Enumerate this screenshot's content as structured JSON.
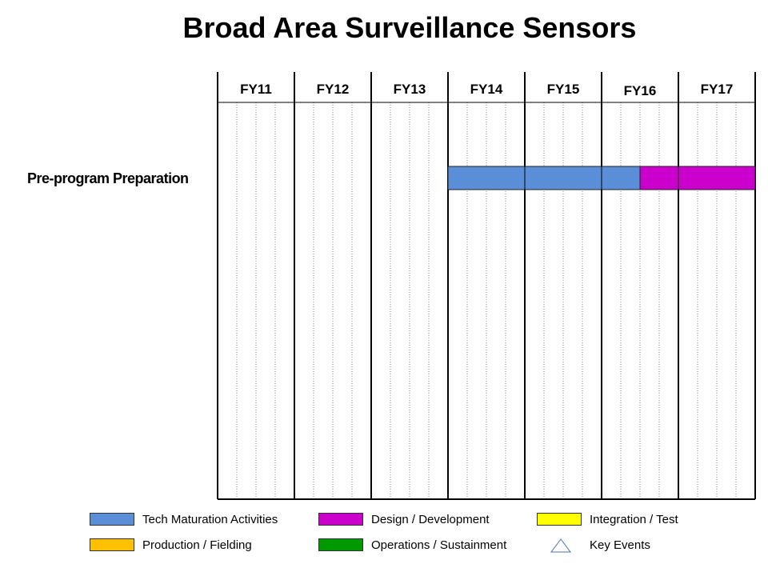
{
  "title": "Broad Area Surveillance Sensors",
  "chart_data": {
    "type": "gantt",
    "title": "Broad Area Surveillance Sensors",
    "periods": [
      "FY11",
      "FY12",
      "FY13",
      "FY14",
      "FY15",
      "FY16",
      "FY17"
    ],
    "quarters_per_period": 4,
    "rows": [
      {
        "label": "Pre-program Preparation",
        "bars": [
          {
            "category": "Tech Maturation Activities",
            "start": "FY14 Q1",
            "end": "FY16 Q2"
          },
          {
            "category": "Design / Development",
            "start": "FY16 Q3",
            "end": "FY17 Q4"
          }
        ]
      }
    ]
  },
  "legend": [
    {
      "label": "Tech Maturation Activities",
      "color": "#5a8fd8",
      "kind": "box"
    },
    {
      "label": "Design / Development",
      "color": "#cc00cc",
      "kind": "box"
    },
    {
      "label": "Integration / Test",
      "color": "#ffff00",
      "kind": "box"
    },
    {
      "label": "Production / Fielding",
      "color": "#ffc000",
      "kind": "box"
    },
    {
      "label": "Operations / Sustainment",
      "color": "#009900",
      "kind": "box"
    },
    {
      "label": "Key Events",
      "color": "#4a74b8",
      "kind": "triangle"
    }
  ]
}
